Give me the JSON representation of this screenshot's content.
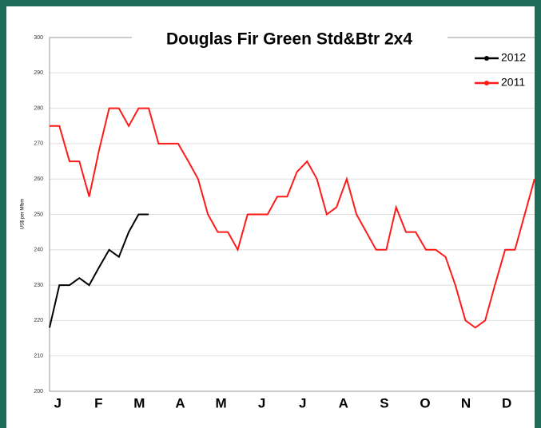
{
  "chart_data": {
    "type": "line",
    "title": "Douglas Fir Green Std&Btr 2x4",
    "y_label": "US$ per Mfbm",
    "xlim": [
      0,
      12
    ],
    "ylim": [
      200,
      300
    ],
    "xticks": [
      {
        "value": 0.2,
        "label": "J"
      },
      {
        "value": 1.2,
        "label": "F"
      },
      {
        "value": 2.2,
        "label": "M"
      },
      {
        "value": 3.2,
        "label": "A"
      },
      {
        "value": 4.2,
        "label": "M"
      },
      {
        "value": 5.2,
        "label": "J"
      },
      {
        "value": 6.2,
        "label": "J"
      },
      {
        "value": 7.2,
        "label": "A"
      },
      {
        "value": 8.2,
        "label": "S"
      },
      {
        "value": 9.2,
        "label": "O"
      },
      {
        "value": 10.2,
        "label": "N"
      },
      {
        "value": 11.2,
        "label": "D"
      }
    ],
    "yticks": [
      200,
      210,
      220,
      230,
      240,
      250,
      260,
      270,
      280,
      290,
      300
    ],
    "grid": true,
    "legend": "top-right",
    "series": [
      {
        "name": "2012",
        "color": "#000000",
        "x": [
          0,
          0.24,
          0.49,
          0.73,
          0.97,
          1.21,
          1.46,
          1.7,
          1.94,
          2.18,
          2.43
        ],
        "values": [
          218,
          230,
          230,
          232,
          230,
          235,
          240,
          238,
          245,
          250,
          250
        ]
      },
      {
        "name": "2011",
        "color": "#ff1a1a",
        "x": [
          0,
          0.24,
          0.49,
          0.73,
          0.97,
          1.21,
          1.46,
          1.7,
          1.94,
          2.18,
          2.43,
          2.67,
          2.91,
          3.15,
          3.4,
          3.64,
          3.88,
          4.12,
          4.37,
          4.61,
          4.85,
          5.09,
          5.34,
          5.58,
          5.82,
          6.06,
          6.31,
          6.55,
          6.79,
          7.03,
          7.28,
          7.52,
          7.76,
          8.0,
          8.25,
          8.49,
          8.73,
          8.97,
          9.22,
          9.46,
          9.7,
          9.94,
          10.19,
          10.43,
          10.67,
          10.91,
          11.16,
          11.4,
          11.64,
          11.88
        ],
        "values": [
          275,
          275,
          265,
          265,
          255,
          268,
          280,
          280,
          275,
          280,
          280,
          270,
          270,
          270,
          265,
          260,
          250,
          245,
          245,
          240,
          250,
          250,
          250,
          255,
          255,
          262,
          265,
          260,
          250,
          252,
          260,
          250,
          245,
          240,
          240,
          252,
          245,
          245,
          240,
          240,
          238,
          230,
          220,
          218,
          220,
          230,
          240,
          240,
          250,
          260
        ]
      }
    ]
  }
}
